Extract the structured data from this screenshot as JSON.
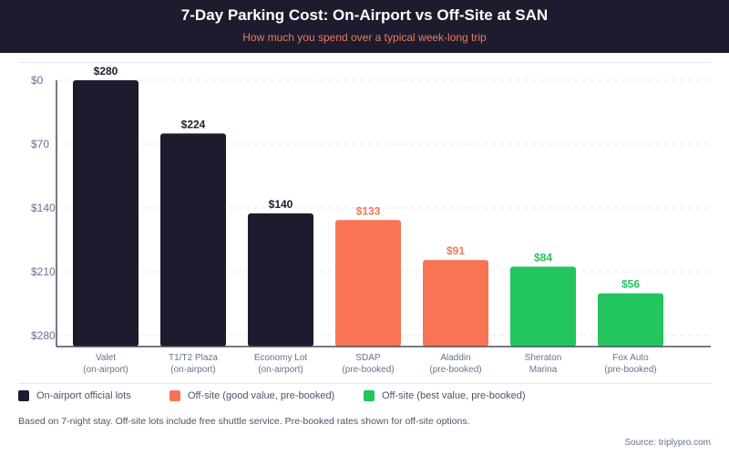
{
  "header": {
    "title": "7-Day Parking Cost: On-Airport vs Off-Site at SAN",
    "subtitle": "How much you spend over a typical week-long trip"
  },
  "colors": {
    "header_bg": "#1c1c2e",
    "subtitle": "#f07a5c",
    "on_airport": "#1c1c2e",
    "good_value": "#f87455",
    "best_value": "#22c55e"
  },
  "chart_data": {
    "type": "bar",
    "title": "7-Day Parking Cost: On-Airport vs Off-Site at SAN",
    "subtitle": "How much you spend over a typical week-long trip",
    "xlabel": "",
    "ylabel": "",
    "ylim": [
      0,
      280
    ],
    "y_axis_inverted_labels": true,
    "yticks": [
      "$0",
      "$70",
      "$140",
      "$210",
      "$280"
    ],
    "grid": true,
    "categories": [
      {
        "line1": "Valet",
        "line2": "(on-airport)"
      },
      {
        "line1": "T1/T2 Plaza",
        "line2": "(on-airport)"
      },
      {
        "line1": "Economy Lot",
        "line2": "(on-airport)"
      },
      {
        "line1": "SDAP",
        "line2": "(pre-booked)"
      },
      {
        "line1": "Aladdin",
        "line2": "(pre-booked)"
      },
      {
        "line1": "Sheraton",
        "line2": "Marina"
      },
      {
        "line1": "Fox Auto",
        "line2": "(pre-booked)"
      }
    ],
    "values": [
      280,
      224,
      140,
      133,
      91,
      84,
      56
    ],
    "value_labels": [
      "$280",
      "$224",
      "$140",
      "$133",
      "$91",
      "$84",
      "$56"
    ],
    "groups": [
      "on_airport",
      "on_airport",
      "on_airport",
      "good_value",
      "good_value",
      "best_value",
      "best_value"
    ],
    "legend_position": "bottom-left",
    "legend": [
      {
        "key": "on_airport",
        "label": "On-airport official lots"
      },
      {
        "key": "good_value",
        "label": "Off-site (good value, pre-booked)"
      },
      {
        "key": "best_value",
        "label": "Off-site (best value, pre-booked)"
      }
    ]
  },
  "footer": {
    "note": "Based on 7-night stay. Off-site lots include free shuttle service. Pre-booked rates shown for off-site options.",
    "source": "Source: triplypro.com"
  }
}
